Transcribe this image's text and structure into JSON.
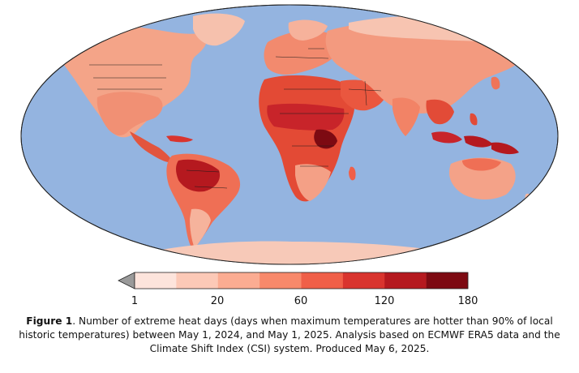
{
  "caption": {
    "label": "Figure 1",
    "text": ". Number of extreme heat days (days when maximum temperatures are hotter than 90% of local historic temperatures) between May 1, 2024, and May 1, 2025. Analysis based on ECMWF ERA5 data and the Climate Shift Index (CSI) system. Produced May 6, 2025."
  },
  "legend": {
    "tick_labels": [
      "1",
      "20",
      "60",
      "120",
      "180"
    ],
    "bins": [
      "#fde4dc",
      "#fcc9b7",
      "#fbac92",
      "#f8896b",
      "#f05f48",
      "#d9342e",
      "#b5191f",
      "#7d0a12"
    ],
    "under_color": "#9a9a9a"
  },
  "map": {
    "ocean_color": "#94b4e0",
    "border_color": "#1a1a1a"
  }
}
